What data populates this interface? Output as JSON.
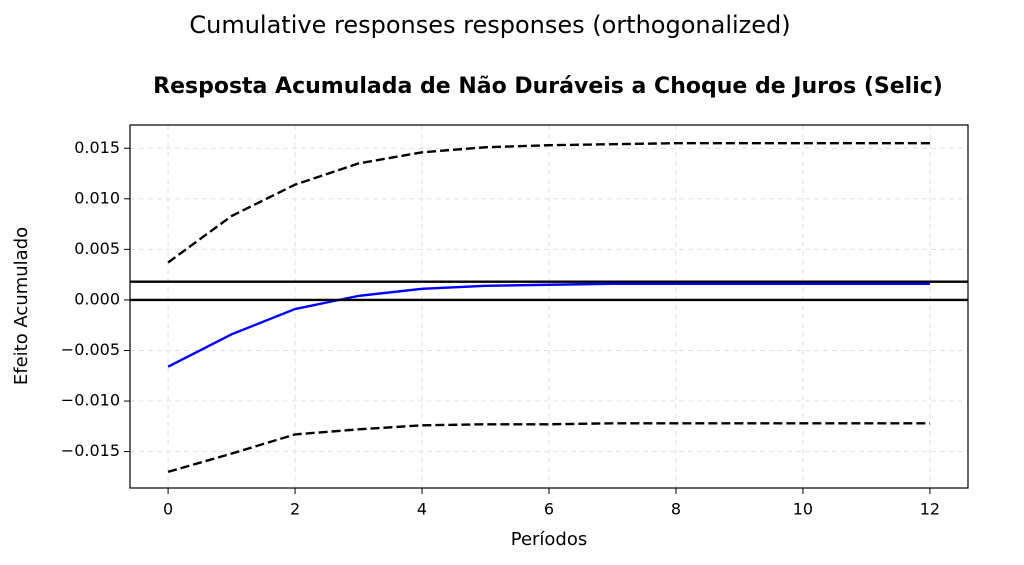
{
  "chart_data": {
    "type": "line",
    "suptitle": "Cumulative responses responses (orthogonalized)",
    "title": "Resposta Acumulada de Não Duráveis a Choque de Juros (Selic)",
    "xlabel": "Períodos",
    "ylabel": "Efeito Acumulado",
    "x": [
      0,
      1,
      2,
      3,
      4,
      5,
      6,
      7,
      8,
      9,
      10,
      11,
      12
    ],
    "series": [
      {
        "color": "#0000ff",
        "dashed": false,
        "values": [
          -0.0066,
          -0.0034,
          -0.0009,
          0.0004,
          0.0011,
          0.0014,
          0.0015,
          0.0016,
          0.0016,
          0.0016,
          0.0016,
          0.0016,
          0.0016
        ]
      },
      {
        "color": "#000000",
        "dashed": true,
        "values": [
          0.0037,
          0.0083,
          0.0114,
          0.0135,
          0.0146,
          0.0151,
          0.0153,
          0.0154,
          0.0155,
          0.0155,
          0.0155,
          0.0155,
          0.0155
        ]
      },
      {
        "color": "#000000",
        "dashed": true,
        "values": [
          -0.017,
          -0.0152,
          -0.0133,
          -0.0128,
          -0.0124,
          -0.0123,
          -0.0123,
          -0.0122,
          -0.0122,
          -0.0122,
          -0.0122,
          -0.0122,
          -0.0122
        ]
      }
    ],
    "hlines": [
      0,
      0.0018
    ],
    "xlim": [
      -0.6,
      12.6
    ],
    "ylim": [
      -0.0186,
      0.0173
    ],
    "xticks": [
      0,
      2,
      4,
      6,
      8,
      10,
      12
    ],
    "yticks": [
      {
        "value": -0.015,
        "label": "−0.015"
      },
      {
        "value": -0.01,
        "label": "−0.010"
      },
      {
        "value": -0.005,
        "label": "−0.005"
      },
      {
        "value": 0,
        "label": "0.000"
      },
      0.005,
      {
        "value": 0.01,
        "label": "0.010"
      },
      0.015
    ],
    "grid": true
  }
}
